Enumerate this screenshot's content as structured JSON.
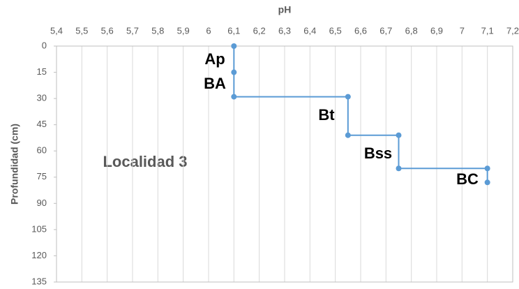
{
  "chart_data": {
    "type": "line",
    "title": "pH",
    "ylabel": "Profundidad (cm)",
    "annotation": "Localidad 3",
    "x_axis_position": "top",
    "y_reversed": true,
    "series": [
      {
        "name": "Localidad 3",
        "color": "#5b9bd5",
        "x": [
          6.1,
          6.1,
          6.1,
          6.55,
          6.55,
          6.75,
          6.75,
          7.1,
          7.1
        ],
        "values": [
          0,
          15,
          29,
          29,
          51,
          51,
          70,
          70,
          78
        ]
      }
    ],
    "horizon_labels": [
      "Ap",
      "BA",
      "Bt",
      "Bss",
      "BC"
    ],
    "xlim": [
      5.4,
      7.2
    ],
    "xticks": [
      {
        "value": 5.4,
        "label": "5,4"
      },
      {
        "value": 5.5,
        "label": "5,5"
      },
      {
        "value": 5.6,
        "label": "5,6"
      },
      {
        "value": 5.7,
        "label": "5,7"
      },
      {
        "value": 5.8,
        "label": "5,8"
      },
      {
        "value": 5.9,
        "label": "5,9"
      },
      6,
      {
        "value": 6.1,
        "label": "6,1"
      },
      {
        "value": 6.2,
        "label": "6,2"
      },
      {
        "value": 6.3,
        "label": "6,3"
      },
      {
        "value": 6.4,
        "label": "6,4"
      },
      {
        "value": 6.5,
        "label": "6,5"
      },
      {
        "value": 6.6,
        "label": "6,6"
      },
      {
        "value": 6.7,
        "label": "6,7"
      },
      {
        "value": 6.8,
        "label": "6,8"
      },
      {
        "value": 6.9,
        "label": "6,9"
      },
      7,
      {
        "value": 7.1,
        "label": "7,1"
      },
      {
        "value": 7.2,
        "label": "7,2"
      }
    ],
    "ylim": [
      0,
      135
    ],
    "yticks": [
      0,
      15,
      30,
      45,
      60,
      75,
      90,
      105,
      120,
      135
    ],
    "grid": true
  }
}
